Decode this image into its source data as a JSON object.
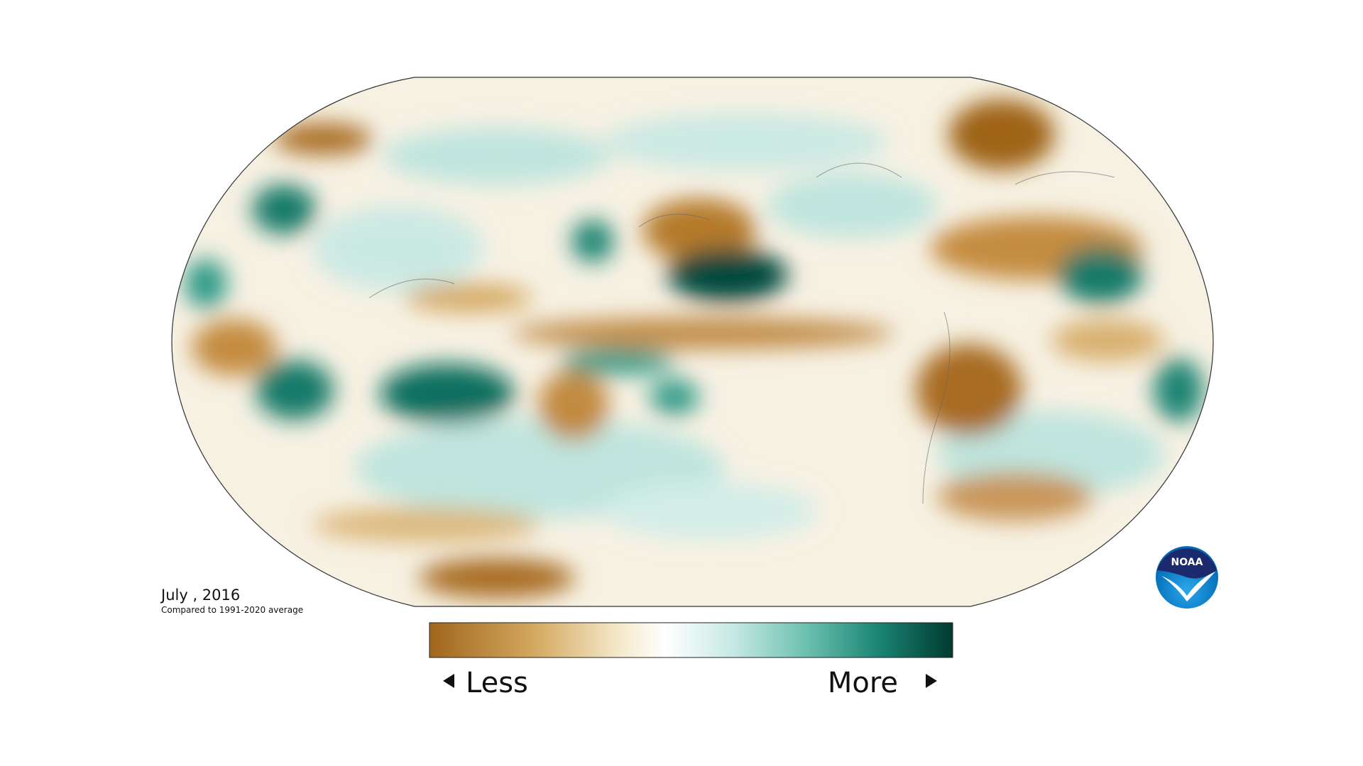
{
  "map": {
    "date": "July , 2016",
    "subtitle": "Compared to 1991-2020 average",
    "legend": {
      "low": "Less",
      "high": "More"
    },
    "logo": "NOAA"
  }
}
